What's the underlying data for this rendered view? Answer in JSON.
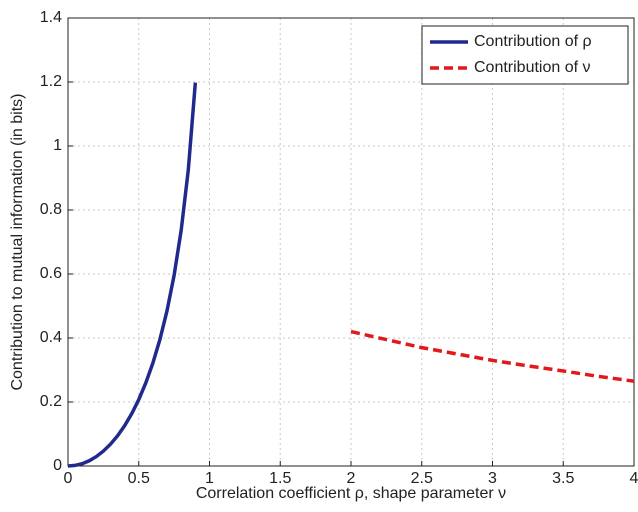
{
  "chart_data": {
    "type": "line",
    "xlabel": "Correlation coefficient ρ, shape parameter ν",
    "ylabel": "Contribution to mutual information (in bits)",
    "xlim": [
      0,
      4
    ],
    "xticks": [
      0,
      0.5,
      1,
      1.5,
      2,
      2.5,
      3,
      3.5,
      4
    ],
    "ylim": [
      0,
      1.4
    ],
    "yticks": [
      0,
      0.2,
      0.4,
      0.6,
      0.8,
      1,
      1.2,
      1.4
    ],
    "grid": true,
    "legend": "upper-right",
    "series": [
      {
        "name": "Contribution of ρ",
        "color": "#1f2a8c",
        "style": "solid",
        "x": [
          0,
          0.05,
          0.1,
          0.15,
          0.2,
          0.25,
          0.3,
          0.35,
          0.4,
          0.45,
          0.5,
          0.55,
          0.6,
          0.65,
          0.7,
          0.75,
          0.8,
          0.85,
          0.9
        ],
        "values": [
          0,
          0.0018,
          0.0072,
          0.0164,
          0.0294,
          0.0466,
          0.068,
          0.0943,
          0.1258,
          0.1632,
          0.2075,
          0.2599,
          0.3219,
          0.3961,
          0.4857,
          0.5963,
          0.737,
          0.9247,
          1.198
        ]
      },
      {
        "name": "Contribution of ν",
        "color": "#e0191b",
        "style": "dashed",
        "x": [
          2,
          2.25,
          2.5,
          2.75,
          3,
          3.25,
          3.5,
          3.75,
          4
        ],
        "values": [
          0.42,
          0.395,
          0.37,
          0.35,
          0.33,
          0.313,
          0.297,
          0.28,
          0.265
        ]
      }
    ]
  }
}
